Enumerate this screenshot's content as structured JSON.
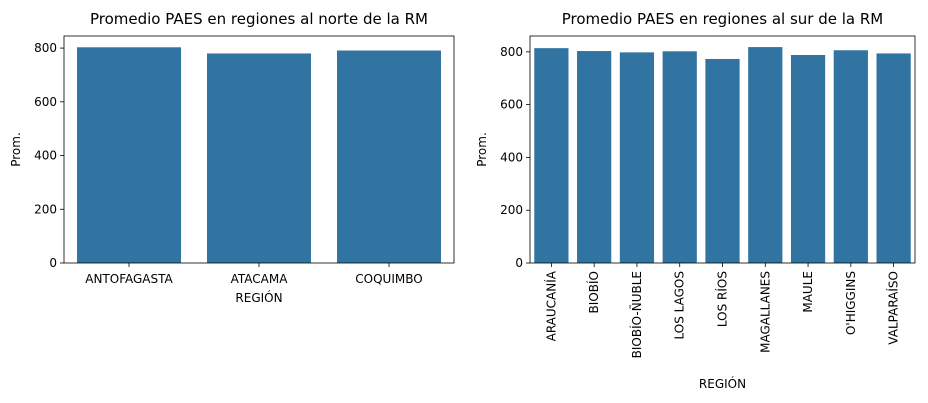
{
  "chart_data": [
    {
      "type": "bar",
      "title": "Promedio PAES en regiones al norte de la RM",
      "xlabel": "REGIÓN",
      "ylabel": "Prom.",
      "categories": [
        "ANTOFAGASTA",
        "ATACAMA",
        "COQUIMBO"
      ],
      "values": [
        803,
        780,
        791
      ],
      "ylim": [
        0,
        845
      ],
      "yticks": [
        0,
        200,
        400,
        600,
        800
      ],
      "bar_color": "#3274a1",
      "xtick_rotation": 0
    },
    {
      "type": "bar",
      "title": "Promedio PAES en regiones al sur de la RM",
      "xlabel": "REGIÓN",
      "ylabel": "Prom.",
      "categories": [
        "ARAUCANÍA",
        "BIOBÍO",
        "BIOBÍO-ÑUBLE",
        "LOS LAGOS",
        "LOS RÍOS",
        "MAGALLANES",
        "MAULE",
        "O'HIGGINS",
        "VALPARAÍSO"
      ],
      "values": [
        814,
        803,
        798,
        802,
        773,
        818,
        788,
        806,
        794
      ],
      "ylim": [
        0,
        860
      ],
      "yticks": [
        0,
        200,
        400,
        600,
        800
      ],
      "bar_color": "#3274a1",
      "xtick_rotation": -90
    }
  ]
}
